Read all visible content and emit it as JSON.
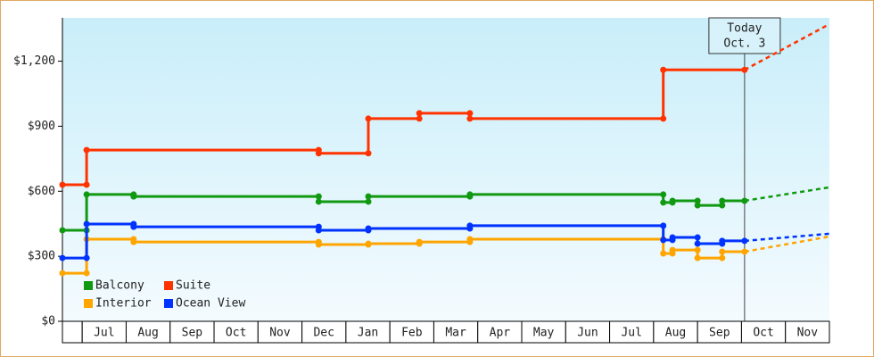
{
  "chart_data": {
    "type": "step",
    "xlim": [
      -0.45,
      17
    ],
    "ylim": [
      0,
      1400
    ],
    "yticks": [
      {
        "value": 0,
        "label": "$0"
      },
      {
        "value": 300,
        "label": "$300"
      },
      {
        "value": 600,
        "label": "$600"
      },
      {
        "value": 900,
        "label": "$900"
      },
      {
        "value": 1200,
        "label": "$1,200"
      }
    ],
    "xticks": [
      {
        "value": 0.5,
        "label": "Jul"
      },
      {
        "value": 1.5,
        "label": "Aug"
      },
      {
        "value": 2.5,
        "label": "Sep"
      },
      {
        "value": 3.5,
        "label": "Oct"
      },
      {
        "value": 4.5,
        "label": "Nov"
      },
      {
        "value": 5.5,
        "label": "Dec"
      },
      {
        "value": 6.5,
        "label": "Jan"
      },
      {
        "value": 7.5,
        "label": "Feb"
      },
      {
        "value": 8.5,
        "label": "Mar"
      },
      {
        "value": 9.5,
        "label": "Apr"
      },
      {
        "value": 10.5,
        "label": "May"
      },
      {
        "value": 11.5,
        "label": "Jun"
      },
      {
        "value": 12.5,
        "label": "Jul"
      },
      {
        "value": 13.5,
        "label": "Aug"
      },
      {
        "value": 14.5,
        "label": "Sep"
      },
      {
        "value": 15.5,
        "label": "Oct"
      },
      {
        "value": 16.5,
        "label": "Nov"
      }
    ],
    "today": {
      "x": 15.07,
      "label_lines": [
        "Today",
        "Oct. 3"
      ]
    },
    "series": [
      {
        "name": "Balcony",
        "color": "#119911",
        "x": [
          -0.45,
          0.1,
          1.17,
          5.38,
          6.51,
          8.82,
          13.22,
          13.43,
          14.0,
          14.56,
          15.07
        ],
        "values": [
          420,
          585,
          576,
          552,
          576,
          585,
          548,
          556,
          535,
          556,
          556
        ],
        "projection": {
          "x": [
            15.07,
            17
          ],
          "values": [
            556,
            618
          ]
        }
      },
      {
        "name": "Suite",
        "color": "#ff3300",
        "x": [
          -0.45,
          0.1,
          5.38,
          6.51,
          7.67,
          8.82,
          13.22,
          15.07
        ],
        "values": [
          630,
          790,
          775,
          935,
          960,
          935,
          1160,
          1160
        ],
        "projection": {
          "x": [
            15.07,
            17
          ],
          "values": [
            1160,
            1371
          ]
        }
      },
      {
        "name": "Interior",
        "color": "#ffa500",
        "x": [
          -0.45,
          0.1,
          1.17,
          5.38,
          6.51,
          7.67,
          8.82,
          13.22,
          13.43,
          14.0,
          14.56,
          15.07
        ],
        "values": [
          222,
          379,
          366,
          354,
          358,
          366,
          379,
          313,
          329,
          292,
          321,
          321
        ],
        "projection": {
          "x": [
            15.07,
            17
          ],
          "values": [
            321,
            391
          ]
        }
      },
      {
        "name": "Ocean View",
        "color": "#0033ff",
        "x": [
          -0.45,
          0.1,
          1.17,
          5.38,
          6.51,
          8.82,
          13.22,
          13.43,
          14.0,
          14.56,
          15.07
        ],
        "values": [
          292,
          449,
          436,
          420,
          428,
          441,
          375,
          387,
          358,
          371,
          371
        ],
        "projection": {
          "x": [
            15.07,
            17
          ],
          "values": [
            371,
            404
          ]
        }
      }
    ]
  }
}
